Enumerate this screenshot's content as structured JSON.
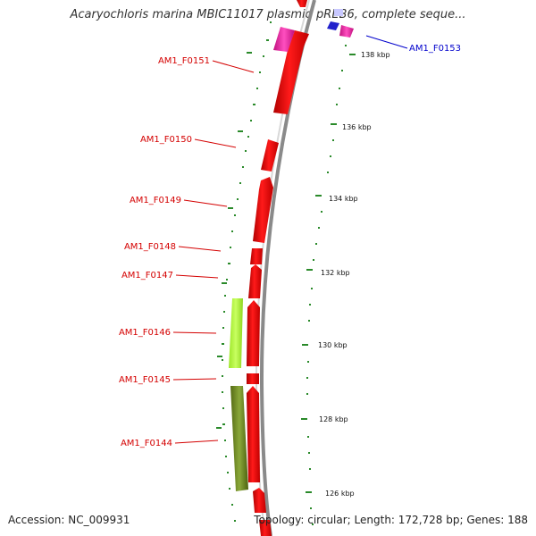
{
  "title": "Acaryochloris marina MBIC11017 plasmid pREB6, complete seque...",
  "accession": "Accession: NC_009931",
  "topology": "Topology: circular; Length: 172,728 bp; Genes: 188",
  "genes_left": [
    {
      "name": "AM1_F0151"
    },
    {
      "name": "AM1_F0150"
    },
    {
      "name": "AM1_F0149"
    },
    {
      "name": "AM1_F0148"
    },
    {
      "name": "AM1_F0147"
    },
    {
      "name": "AM1_F0146"
    },
    {
      "name": "AM1_F0145"
    },
    {
      "name": "AM1_F0144"
    }
  ],
  "genes_right": [
    {
      "name": "AM1_F0153"
    }
  ],
  "kbp_ticks": [
    "138 kbp",
    "136 kbp",
    "134 kbp",
    "132 kbp",
    "130 kbp",
    "128 kbp",
    "126 kbp"
  ],
  "colors": {
    "gene_red": "#ff0000",
    "gene_magenta": "#e0189a",
    "gene_lime": "#a8ff30",
    "gene_olive": "#6f8a20",
    "gene_blue": "#2222cc",
    "label_red": "#d40000",
    "label_blue": "#0000cc",
    "tick_green": "#2a8a2a",
    "backbone": "#a0a0a0"
  }
}
